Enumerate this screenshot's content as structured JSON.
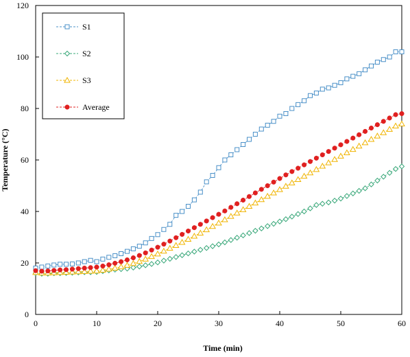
{
  "chart_data": {
    "type": "line",
    "xlabel": "Time (min)",
    "ylabel": "Temperature  (°C)",
    "xlim": [
      0,
      60
    ],
    "ylim": [
      0,
      120
    ],
    "xticks": [
      0,
      10,
      20,
      30,
      40,
      50,
      60
    ],
    "yticks": [
      0,
      20,
      40,
      60,
      80,
      100,
      120
    ],
    "grid": false,
    "legend_position": "top-left",
    "x": [
      0,
      1,
      2,
      3,
      4,
      5,
      6,
      7,
      8,
      9,
      10,
      11,
      12,
      13,
      14,
      15,
      16,
      17,
      18,
      19,
      20,
      21,
      22,
      23,
      24,
      25,
      26,
      27,
      28,
      29,
      30,
      31,
      32,
      33,
      34,
      35,
      36,
      37,
      38,
      39,
      40,
      41,
      42,
      43,
      44,
      45,
      46,
      47,
      48,
      49,
      50,
      51,
      52,
      53,
      54,
      55,
      56,
      57,
      58,
      59,
      60
    ],
    "series": [
      {
        "name": "S1",
        "color": "#4a90c8",
        "marker": "square-open",
        "values": [
          18,
          18.4,
          18.8,
          19.2,
          19.5,
          19.5,
          19.6,
          20,
          20.5,
          21,
          20.5,
          21.5,
          22.2,
          22.8,
          23.6,
          24.5,
          25.5,
          26.5,
          27.8,
          29.5,
          31,
          33,
          35,
          38.5,
          40,
          42,
          44.5,
          47.5,
          51.5,
          54,
          57,
          60,
          62,
          64,
          66,
          68,
          70,
          72,
          73.5,
          75,
          77,
          78,
          80,
          81.5,
          83,
          85,
          86,
          87.5,
          88,
          89,
          90,
          91.5,
          92.5,
          93.5,
          95,
          96.5,
          98,
          99,
          100,
          102,
          102
        ]
      },
      {
        "name": "S2",
        "color": "#3aa87a",
        "marker": "diamond-open",
        "values": [
          16,
          15.8,
          15.8,
          16,
          16,
          16.1,
          16.2,
          16.3,
          16.4,
          16.4,
          16.5,
          16.8,
          17.1,
          17.4,
          17.6,
          17.8,
          18.2,
          18.6,
          19.1,
          19.6,
          20.2,
          20.9,
          21.6,
          22.3,
          23,
          23.7,
          24.4,
          25.1,
          25.8,
          26.5,
          27.2,
          28,
          28.9,
          29.8,
          30.7,
          31.6,
          32.5,
          33.4,
          34.3,
          35.2,
          36.1,
          37,
          38,
          39,
          40,
          41.2,
          42.5,
          43,
          43.5,
          44.2,
          45,
          46,
          47,
          48,
          49,
          50.5,
          52,
          53.5,
          55,
          56.5,
          57.5
        ]
      },
      {
        "name": "S3",
        "color": "#f0b400",
        "marker": "triangle-open",
        "values": [
          16.3,
          16.1,
          16.1,
          16.2,
          16.3,
          16.4,
          16.5,
          16.6,
          16.7,
          16.8,
          16.9,
          17.2,
          17.6,
          18,
          18.5,
          19.1,
          19.8,
          20.6,
          21.5,
          22.5,
          23.5,
          24.6,
          25.7,
          26.8,
          28,
          29.2,
          30.4,
          31.6,
          32.9,
          34.2,
          35.5,
          36.8,
          38.1,
          39.4,
          40.7,
          42,
          43.3,
          44.6,
          45.9,
          47.2,
          48.5,
          49.8,
          51.1,
          52.4,
          53.7,
          55,
          56.3,
          57.6,
          58.9,
          60.2,
          61.5,
          62.8,
          64.1,
          65.4,
          66.7,
          68,
          69.3,
          70.6,
          71.9,
          73.2,
          74
        ]
      },
      {
        "name": "Average",
        "color": "#e02020",
        "marker": "circle-filled",
        "values": [
          17,
          16.8,
          16.9,
          17.1,
          17.3,
          17.4,
          17.6,
          17.8,
          18,
          18.2,
          18.4,
          18.8,
          19.3,
          19.9,
          20.5,
          21.2,
          22,
          22.9,
          23.9,
          25,
          26.1,
          27.3,
          28.5,
          29.8,
          31.1,
          32.4,
          33.7,
          35,
          36.3,
          37.6,
          38.9,
          40.2,
          41.6,
          43,
          44.4,
          45.8,
          47.2,
          48.6,
          50,
          51.4,
          52.8,
          54.2,
          55.5,
          56.8,
          58.1,
          59.4,
          60.7,
          62,
          63.3,
          64.6,
          65.9,
          67.2,
          68.5,
          69.8,
          71.1,
          72.4,
          73.7,
          75,
          76.3,
          77.6,
          78
        ]
      }
    ]
  }
}
